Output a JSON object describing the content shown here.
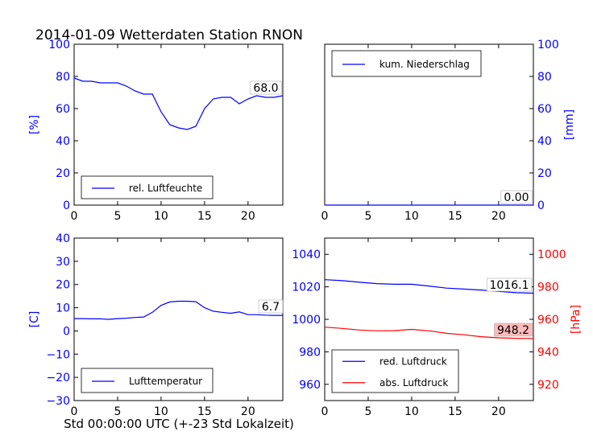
{
  "title": "2014-01-09 Wetterdaten Station RNON",
  "footer_xlabel": "Std 00:00:00 UTC (+-23 Std Lokalzeit)",
  "colors": {
    "blue": "#0000ff",
    "red": "#ff0000",
    "last_value_box_red": "#ffbbbb"
  },
  "chart_data": [
    {
      "type": "line",
      "panel": "top-left",
      "ylabel": "[%]",
      "xlim": [
        0,
        24
      ],
      "ylim": [
        0,
        100
      ],
      "xticks": [
        "0",
        "5",
        "10",
        "15",
        "20"
      ],
      "yticks": [
        "0",
        "20",
        "40",
        "60",
        "80",
        "100"
      ],
      "legend_position": "bottom-left",
      "last_value": "68.0",
      "series": [
        {
          "name": "rel. Luftfeuchte",
          "color": "#0000ff",
          "x": [
            0,
            1,
            2,
            3,
            4,
            5,
            6,
            7,
            8,
            9,
            10,
            11,
            12,
            13,
            14,
            15,
            16,
            17,
            18,
            19,
            20,
            21,
            22,
            23,
            24
          ],
          "y": [
            79,
            77,
            77,
            76,
            76,
            76,
            74,
            71,
            69,
            69,
            58,
            50,
            48,
            47,
            49,
            60,
            66,
            67,
            67,
            63,
            66,
            68,
            67,
            67,
            68
          ]
        }
      ]
    },
    {
      "type": "line",
      "panel": "top-right",
      "ylabel": "[mm]",
      "xlim": [
        0,
        24
      ],
      "ylim": [
        0,
        100
      ],
      "xticks": [
        "0",
        "5",
        "10",
        "15",
        "20"
      ],
      "yticks": [
        "0",
        "20",
        "40",
        "60",
        "80",
        "100"
      ],
      "legend_position": "top-left",
      "last_value": "0.00",
      "series": [
        {
          "name": "kum. Niederschlag",
          "color": "#0000ff",
          "x": [
            0,
            24
          ],
          "y": [
            0,
            0
          ]
        }
      ]
    },
    {
      "type": "line",
      "panel": "bottom-left",
      "ylabel": "[C]",
      "xlim": [
        0,
        24
      ],
      "ylim": [
        -30,
        40
      ],
      "xticks": [
        "0",
        "5",
        "10",
        "15",
        "20"
      ],
      "yticks": [
        "−30",
        "−20",
        "−10",
        "0",
        "10",
        "20",
        "30",
        "40"
      ],
      "legend_position": "bottom-left",
      "last_value": "6.7",
      "series": [
        {
          "name": "Lufttemperatur",
          "color": "#0000ff",
          "x": [
            0,
            1,
            2,
            3,
            4,
            5,
            6,
            7,
            8,
            9,
            10,
            11,
            12,
            13,
            14,
            15,
            16,
            17,
            18,
            19,
            20,
            21,
            22,
            23,
            24
          ],
          "y": [
            5.3,
            5.3,
            5.2,
            5.2,
            5.0,
            5.3,
            5.5,
            5.8,
            6.0,
            8.0,
            11.0,
            12.5,
            12.8,
            12.8,
            12.6,
            10.0,
            8.5,
            8.0,
            7.6,
            8.2,
            7.0,
            7.0,
            6.8,
            6.7,
            6.7
          ]
        }
      ]
    },
    {
      "type": "line",
      "panel": "bottom-right",
      "ylabel": "[hPa]",
      "xlim": [
        0,
        24
      ],
      "ylim_left": [
        950,
        1050
      ],
      "ylim_right": [
        910,
        1010
      ],
      "xticks": [
        "0",
        "5",
        "10",
        "15",
        "20"
      ],
      "yticks_left": [
        "960",
        "980",
        "1000",
        "1020",
        "1040"
      ],
      "yticks_right": [
        "920",
        "940",
        "960",
        "980",
        "1000"
      ],
      "legend_position": "bottom-left",
      "last_value_left": "1016.1",
      "last_value_right": "948.2",
      "series": [
        {
          "name": "red. Luftdruck",
          "color": "#0000ff",
          "axis": "left",
          "x": [
            0,
            2,
            4,
            6,
            8,
            10,
            12,
            14,
            16,
            18,
            20,
            22,
            24
          ],
          "y": [
            1024.4,
            1023.8,
            1022.8,
            1022.0,
            1021.6,
            1021.6,
            1020.5,
            1019.2,
            1018.6,
            1018.0,
            1017.2,
            1016.4,
            1016.1
          ]
        },
        {
          "name": "abs. Luftdruck",
          "color": "#ff0000",
          "axis": "right",
          "x": [
            0,
            2,
            4,
            6,
            8,
            10,
            12,
            14,
            16,
            18,
            20,
            22,
            24
          ],
          "y": [
            955.2,
            954.4,
            953.4,
            952.9,
            953.0,
            953.8,
            952.9,
            951.4,
            950.5,
            949.3,
            948.6,
            948.3,
            948.2
          ]
        }
      ]
    }
  ]
}
